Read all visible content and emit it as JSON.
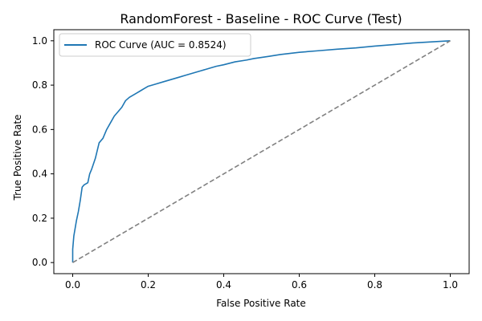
{
  "chart_data": {
    "type": "line",
    "title": "RandomForest - Baseline - ROC Curve (Test)",
    "xlabel": "False Positive Rate",
    "ylabel": "True Positive Rate",
    "xlim": [
      -0.05,
      1.05
    ],
    "ylim": [
      -0.05,
      1.05
    ],
    "xticks": [
      0.0,
      0.2,
      0.4,
      0.6,
      0.8,
      1.0
    ],
    "yticks": [
      0.0,
      0.2,
      0.4,
      0.6,
      0.8,
      1.0
    ],
    "xtick_labels": [
      "0.0",
      "0.2",
      "0.4",
      "0.6",
      "0.8",
      "1.0"
    ],
    "ytick_labels": [
      "0.0",
      "0.2",
      "0.4",
      "0.6",
      "0.8",
      "1.0"
    ],
    "grid": false,
    "legend_position": "upper-left",
    "series": [
      {
        "name": "ROC Curve (AUC = 0.8524)",
        "color": "#1f77b4",
        "style": "solid",
        "x": [
          0.0,
          0.0,
          0.003,
          0.006,
          0.01,
          0.015,
          0.02,
          0.025,
          0.03,
          0.04,
          0.045,
          0.05,
          0.06,
          0.07,
          0.08,
          0.09,
          0.1,
          0.11,
          0.12,
          0.13,
          0.14,
          0.15,
          0.16,
          0.17,
          0.18,
          0.19,
          0.2,
          0.22,
          0.24,
          0.26,
          0.28,
          0.3,
          0.32,
          0.34,
          0.36,
          0.38,
          0.4,
          0.43,
          0.46,
          0.48,
          0.52,
          0.55,
          0.6,
          0.65,
          0.7,
          0.75,
          0.8,
          0.85,
          0.9,
          0.95,
          1.0
        ],
        "y": [
          0.0,
          0.06,
          0.12,
          0.15,
          0.19,
          0.23,
          0.28,
          0.34,
          0.35,
          0.36,
          0.4,
          0.42,
          0.47,
          0.54,
          0.56,
          0.6,
          0.63,
          0.66,
          0.68,
          0.7,
          0.73,
          0.745,
          0.755,
          0.765,
          0.775,
          0.785,
          0.795,
          0.805,
          0.815,
          0.825,
          0.835,
          0.845,
          0.855,
          0.865,
          0.875,
          0.885,
          0.892,
          0.905,
          0.913,
          0.92,
          0.93,
          0.938,
          0.948,
          0.955,
          0.962,
          0.968,
          0.976,
          0.983,
          0.99,
          0.995,
          1.0
        ]
      },
      {
        "name": "",
        "color": "#808080",
        "style": "dashed",
        "x": [
          0.0,
          1.0
        ],
        "y": [
          0.0,
          1.0
        ]
      }
    ]
  }
}
